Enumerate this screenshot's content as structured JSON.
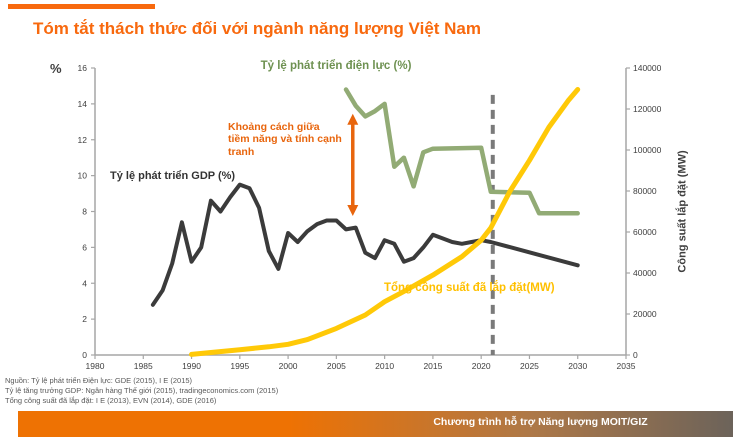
{
  "title": "Tóm tắt thách thức đối với ngành năng lượng Việt Nam",
  "axis_labels": {
    "left_unit": "%",
    "right_title": "Công suất lắp đặt (MW)"
  },
  "colors": {
    "accent_orange": "#F8690E",
    "annotation_orange": "#E8650D",
    "gdp_line": "#3B3B3B",
    "electricity_line": "#92AB75",
    "electricity_label": "#6E9151",
    "capacity_line": "#FFC907",
    "capacity_label": "#FFC000",
    "dashed_line": "#7A7A7A",
    "axis_line": "#A6A6A6",
    "tick_text": "#404040"
  },
  "chart_data": {
    "type": "line",
    "title": "",
    "x_axis": {
      "min": 1980,
      "max": 2035,
      "ticks": [
        1980,
        1985,
        1990,
        1995,
        2000,
        2005,
        2010,
        2015,
        2020,
        2025,
        2030,
        2035
      ]
    },
    "left_axis": {
      "label": "%",
      "min": 0,
      "max": 16,
      "ticks": [
        0,
        2,
        4,
        6,
        8,
        10,
        12,
        14,
        16
      ]
    },
    "right_axis": {
      "label": "Công suất lắp đặt (MW)",
      "min": 0,
      "max": 140000,
      "ticks": [
        0,
        20000,
        40000,
        60000,
        80000,
        100000,
        120000,
        140000
      ]
    },
    "grid": false,
    "legend_position": "inline-labels",
    "series": [
      {
        "name": "Tỷ lệ phát triển điện lực (%)",
        "axis": "left",
        "color": "#92AB75",
        "points": [
          [
            2006,
            14.8
          ],
          [
            2007,
            13.9
          ],
          [
            2008,
            13.3
          ],
          [
            2009,
            13.6
          ],
          [
            2010,
            14.0
          ],
          [
            2011,
            10.5
          ],
          [
            2012,
            11.0
          ],
          [
            2013,
            9.4
          ],
          [
            2014,
            11.3
          ],
          [
            2015,
            11.5
          ],
          [
            2020,
            11.55
          ],
          [
            2021,
            9.1
          ],
          [
            2025,
            9.05
          ],
          [
            2026,
            7.9
          ],
          [
            2030,
            7.9
          ]
        ]
      },
      {
        "name": "Tỷ lệ phát triển GDP (%)",
        "axis": "left",
        "color": "#3B3B3B",
        "points": [
          [
            1986,
            2.8
          ],
          [
            1987,
            3.6
          ],
          [
            1988,
            5.1
          ],
          [
            1989,
            7.4
          ],
          [
            1990,
            5.2
          ],
          [
            1991,
            6.0
          ],
          [
            1992,
            8.6
          ],
          [
            1993,
            8.0
          ],
          [
            1994,
            8.8
          ],
          [
            1995,
            9.5
          ],
          [
            1996,
            9.3
          ],
          [
            1997,
            8.2
          ],
          [
            1998,
            5.8
          ],
          [
            1999,
            4.8
          ],
          [
            2000,
            6.8
          ],
          [
            2001,
            6.3
          ],
          [
            2002,
            6.9
          ],
          [
            2003,
            7.3
          ],
          [
            2004,
            7.5
          ],
          [
            2005,
            7.5
          ],
          [
            2006,
            7.0
          ],
          [
            2007,
            7.1
          ],
          [
            2008,
            5.7
          ],
          [
            2009,
            5.4
          ],
          [
            2010,
            6.4
          ],
          [
            2011,
            6.2
          ],
          [
            2012,
            5.2
          ],
          [
            2013,
            5.4
          ],
          [
            2014,
            6.0
          ],
          [
            2015,
            6.7
          ],
          [
            2016,
            6.5
          ],
          [
            2017,
            6.3
          ],
          [
            2018,
            6.2
          ],
          [
            2019,
            6.3
          ],
          [
            2020,
            6.4
          ],
          [
            2021,
            6.3
          ],
          [
            2030,
            5.0
          ]
        ]
      },
      {
        "name": "Tổng công suất đã lắp đặt(MW)",
        "axis": "right",
        "color": "#FFC907",
        "points": [
          [
            1990,
            300
          ],
          [
            1992,
            1200
          ],
          [
            1995,
            2600
          ],
          [
            1998,
            4000
          ],
          [
            2000,
            5200
          ],
          [
            2002,
            7500
          ],
          [
            2005,
            13000
          ],
          [
            2008,
            19500
          ],
          [
            2010,
            26000
          ],
          [
            2012,
            31000
          ],
          [
            2015,
            39000
          ],
          [
            2018,
            48000
          ],
          [
            2020,
            56000
          ],
          [
            2021,
            62000
          ],
          [
            2023,
            80000
          ],
          [
            2025,
            95000
          ],
          [
            2027,
            111000
          ],
          [
            2029,
            124000
          ],
          [
            2030,
            129500
          ]
        ]
      }
    ],
    "annotations": {
      "electricity_label": "Tỷ lệ phát triển điện lực (%)",
      "gdp_label": "Tỷ lệ phát triển GDP (%)",
      "capacity_label": "Tổng công suất đã lắp đặt(MW)",
      "gap_label": "Khoảng cách giữa tiềm năng và tính cạnh tranh",
      "gap_arrow": {
        "x_year": 2006.7,
        "from_pct": 13.45,
        "to_pct": 7.75,
        "color": "#E8650D"
      },
      "dashed_line": {
        "year": 2021.2,
        "top_pct": 14.5,
        "color": "#7A7A7A"
      }
    }
  },
  "source_lines": [
    "Nguồn: Tỷ lệ phát triển Điện lực: GDE (2015), I E (2015)",
    "Tỷ lệ tăng trưởng GDP: Ngân hàng Thế giới (2015), tradingeconomics.com (2015)",
    "Tổng công suất đã lắp đặt: I E (2013), EVN (2014), GDE (2016)"
  ],
  "footer": {
    "text": "Chương trình hỗ trợ Năng lượng MOIT/GIZ"
  }
}
